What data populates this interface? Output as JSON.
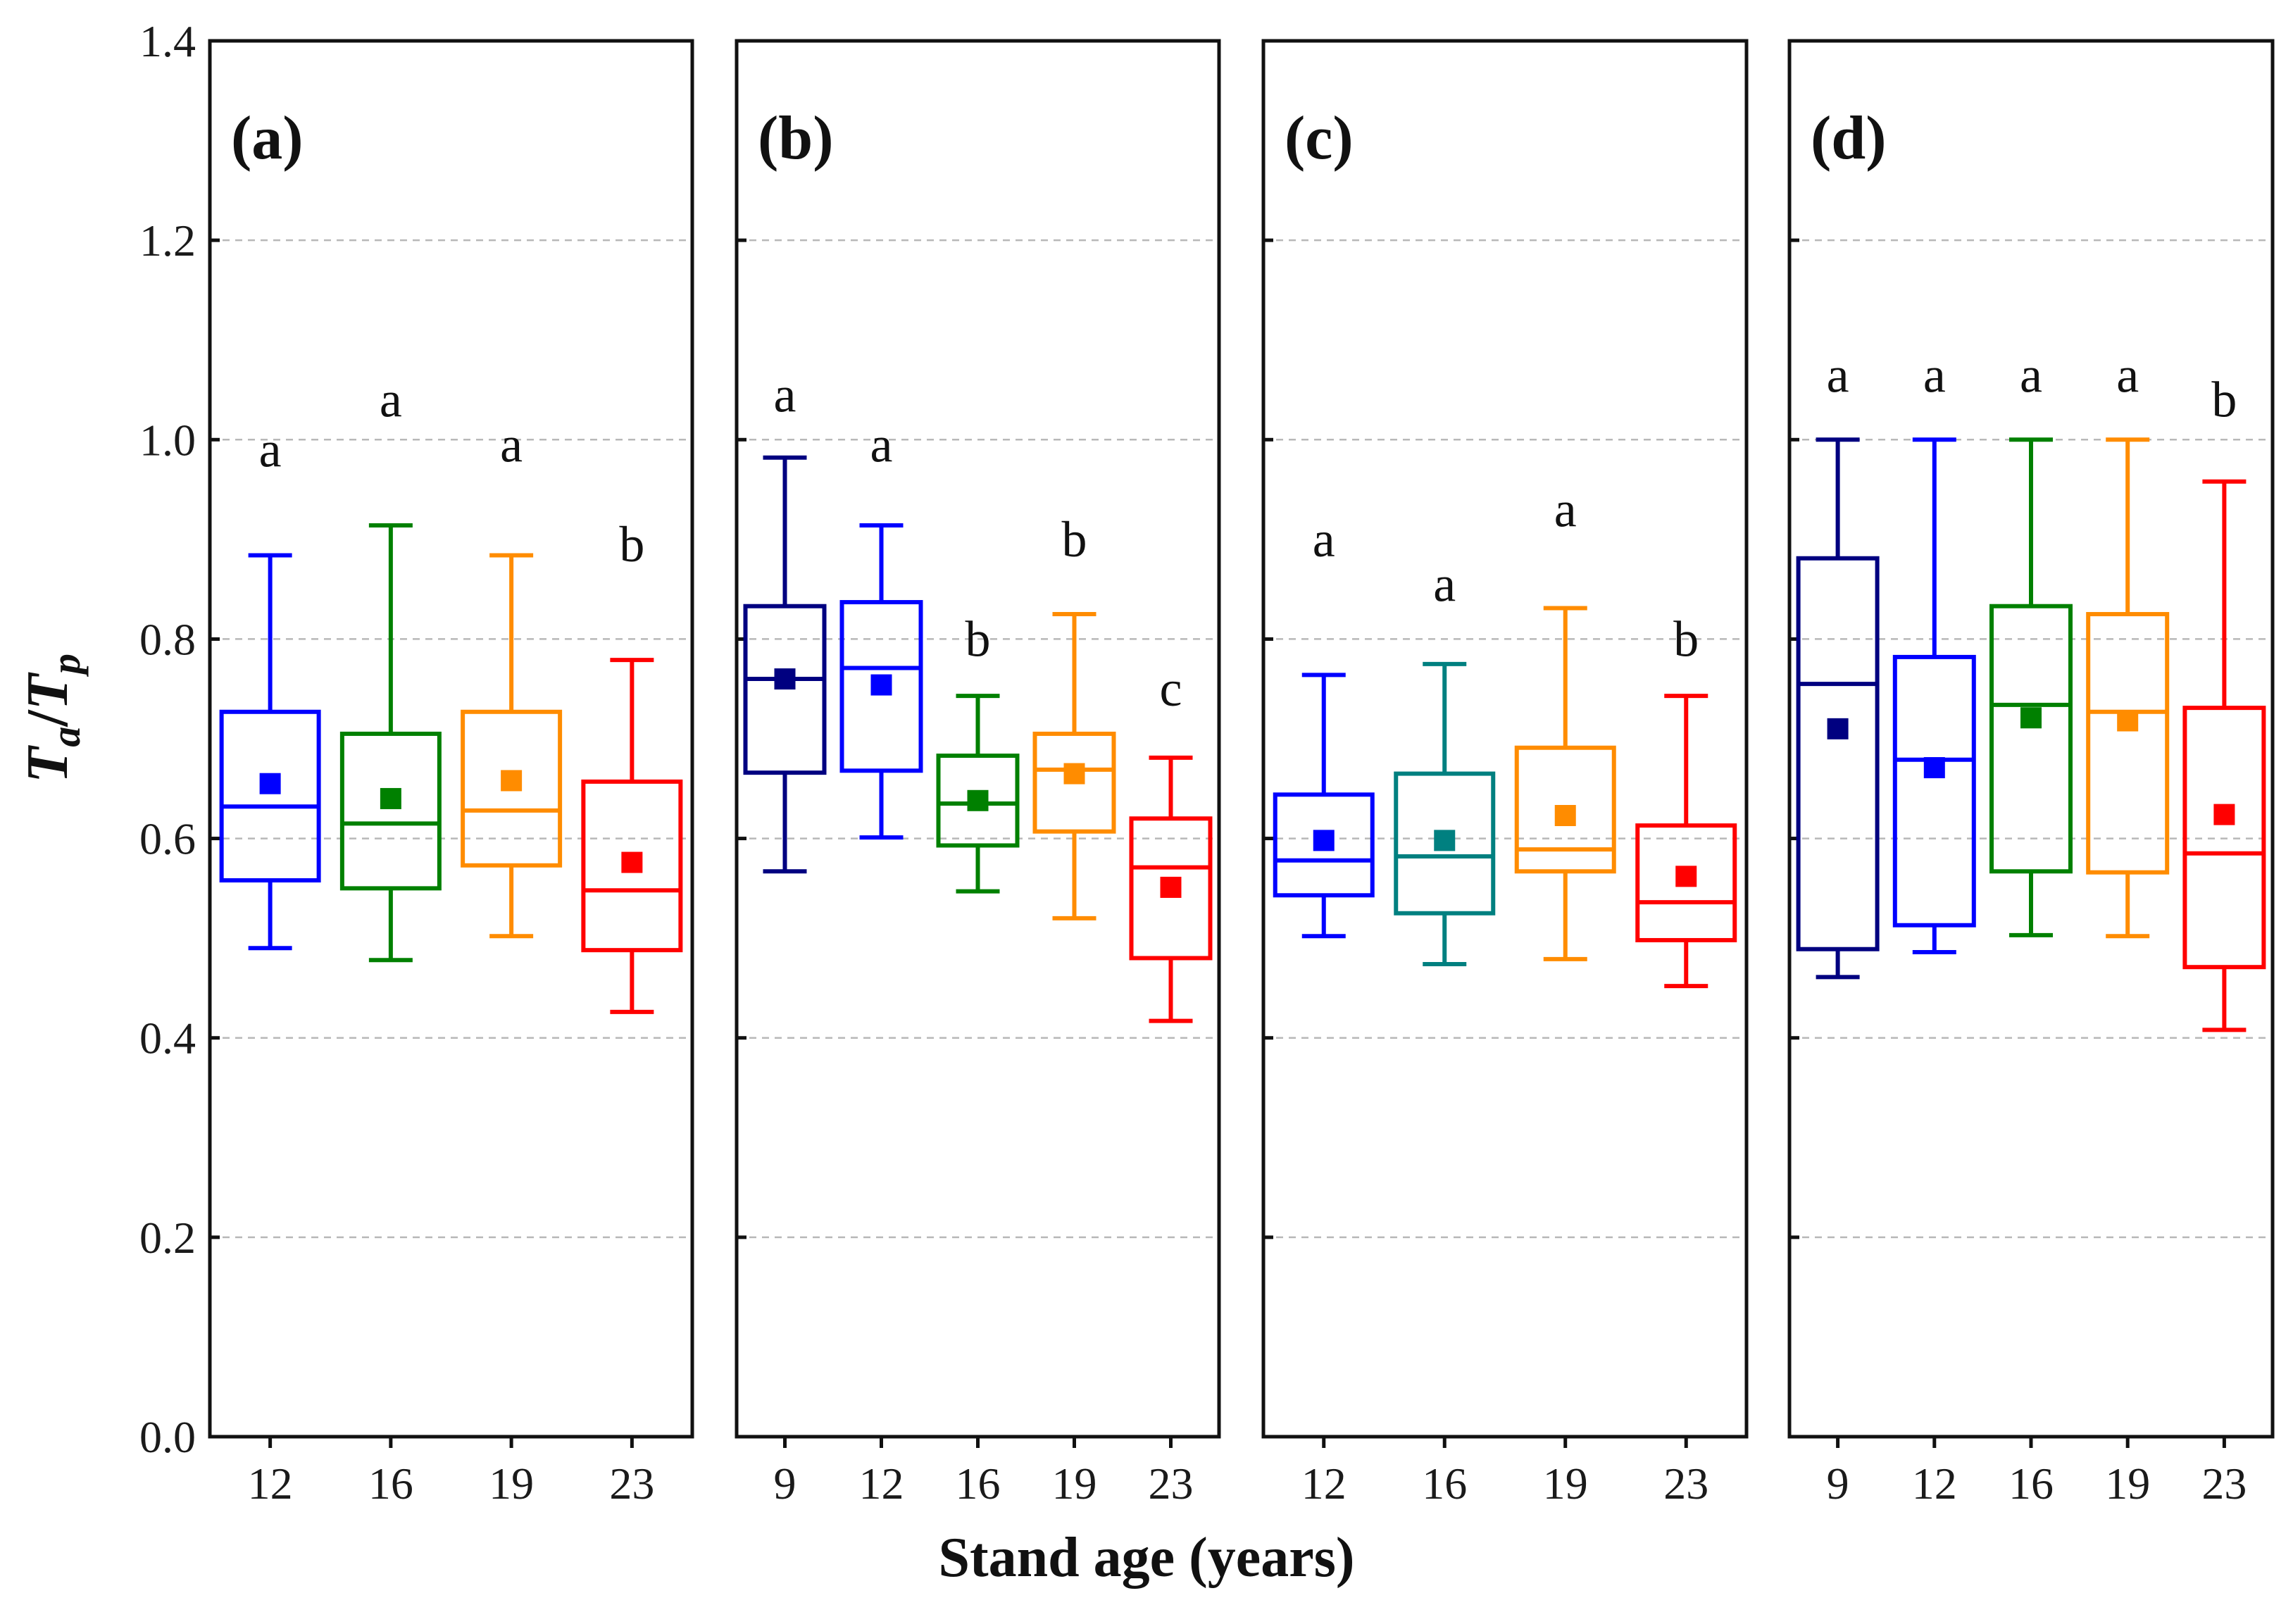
{
  "chart_data": {
    "type": "box",
    "ylabel": {
      "main1": "T",
      "sub1": "a",
      "slash": "/",
      "main2": "T",
      "sub2": "p"
    },
    "xlabel": "Stand age (years)",
    "ylim": [
      0.0,
      1.4
    ],
    "yticks": [
      "0.0",
      "0.2",
      "0.4",
      "0.6",
      "0.8",
      "1.0",
      "1.2",
      "1.4"
    ],
    "grid": true,
    "panels": [
      {
        "label": "(a)",
        "boxes": [
          {
            "category": "12",
            "color": "#0000ff",
            "whisker_low": 0.49,
            "q1": 0.558,
            "median": 0.632,
            "q3": 0.727,
            "whisker_high": 0.884,
            "mean": 0.655,
            "sig": "a",
            "sig_y": 0.99
          },
          {
            "category": "16",
            "color": "#008000",
            "whisker_low": 0.478,
            "q1": 0.55,
            "median": 0.615,
            "q3": 0.705,
            "whisker_high": 0.914,
            "mean": 0.64,
            "sig": "a",
            "sig_y": 1.04
          },
          {
            "category": "19",
            "color": "#ff8c00",
            "whisker_low": 0.502,
            "q1": 0.573,
            "median": 0.628,
            "q3": 0.727,
            "whisker_high": 0.884,
            "mean": 0.658,
            "sig": "a",
            "sig_y": 0.995
          },
          {
            "category": "23",
            "color": "#ff0000",
            "whisker_low": 0.426,
            "q1": 0.488,
            "median": 0.548,
            "q3": 0.657,
            "whisker_high": 0.779,
            "mean": 0.576,
            "sig": "b",
            "sig_y": 0.895
          }
        ]
      },
      {
        "label": "(b)",
        "boxes": [
          {
            "category": "9",
            "color": "#000080",
            "whisker_low": 0.567,
            "q1": 0.666,
            "median": 0.76,
            "q3": 0.833,
            "whisker_high": 0.982,
            "mean": 0.76,
            "sig": "a",
            "sig_y": 1.045
          },
          {
            "category": "12",
            "color": "#0000ff",
            "whisker_low": 0.601,
            "q1": 0.668,
            "median": 0.771,
            "q3": 0.837,
            "whisker_high": 0.914,
            "mean": 0.754,
            "sig": "a",
            "sig_y": 0.995
          },
          {
            "category": "16",
            "color": "#008000",
            "whisker_low": 0.547,
            "q1": 0.593,
            "median": 0.635,
            "q3": 0.683,
            "whisker_high": 0.743,
            "mean": 0.638,
            "sig": "b",
            "sig_y": 0.8
          },
          {
            "category": "19",
            "color": "#ff8c00",
            "whisker_low": 0.52,
            "q1": 0.607,
            "median": 0.669,
            "q3": 0.705,
            "whisker_high": 0.825,
            "mean": 0.665,
            "sig": "b",
            "sig_y": 0.9
          },
          {
            "category": "23",
            "color": "#ff0000",
            "whisker_low": 0.417,
            "q1": 0.48,
            "median": 0.571,
            "q3": 0.62,
            "whisker_high": 0.681,
            "mean": 0.551,
            "sig": "c",
            "sig_y": 0.75
          }
        ]
      },
      {
        "label": "(c)",
        "boxes": [
          {
            "category": "12",
            "color": "#0000ff",
            "whisker_low": 0.502,
            "q1": 0.543,
            "median": 0.578,
            "q3": 0.644,
            "whisker_high": 0.764,
            "mean": 0.598,
            "sig": "a",
            "sig_y": 0.9
          },
          {
            "category": "16",
            "color": "#008080",
            "whisker_low": 0.474,
            "q1": 0.525,
            "median": 0.582,
            "q3": 0.665,
            "whisker_high": 0.775,
            "mean": 0.598,
            "sig": "a",
            "sig_y": 0.855
          },
          {
            "category": "19",
            "color": "#ff8c00",
            "whisker_low": 0.479,
            "q1": 0.567,
            "median": 0.589,
            "q3": 0.691,
            "whisker_high": 0.831,
            "mean": 0.623,
            "sig": "a",
            "sig_y": 0.93
          },
          {
            "category": "23",
            "color": "#ff0000",
            "whisker_low": 0.452,
            "q1": 0.498,
            "median": 0.536,
            "q3": 0.613,
            "whisker_high": 0.743,
            "mean": 0.562,
            "sig": "b",
            "sig_y": 0.8
          }
        ]
      },
      {
        "label": "(d)",
        "boxes": [
          {
            "category": "9",
            "color": "#000080",
            "whisker_low": 0.461,
            "q1": 0.489,
            "median": 0.755,
            "q3": 0.881,
            "whisker_high": 1.0,
            "mean": 0.71,
            "sig": "a",
            "sig_y": 1.065
          },
          {
            "category": "12",
            "color": "#0000ff",
            "whisker_low": 0.486,
            "q1": 0.513,
            "median": 0.679,
            "q3": 0.782,
            "whisker_high": 1.0,
            "mean": 0.671,
            "sig": "a",
            "sig_y": 1.065
          },
          {
            "category": "16",
            "color": "#008000",
            "whisker_low": 0.503,
            "q1": 0.567,
            "median": 0.734,
            "q3": 0.833,
            "whisker_high": 1.0,
            "mean": 0.721,
            "sig": "a",
            "sig_y": 1.065
          },
          {
            "category": "19",
            "color": "#ff8c00",
            "whisker_low": 0.502,
            "q1": 0.566,
            "median": 0.727,
            "q3": 0.825,
            "whisker_high": 1.0,
            "mean": 0.718,
            "sig": "a",
            "sig_y": 1.065
          },
          {
            "category": "23",
            "color": "#ff0000",
            "whisker_low": 0.408,
            "q1": 0.471,
            "median": 0.585,
            "q3": 0.731,
            "whisker_high": 0.958,
            "mean": 0.624,
            "sig": "b",
            "sig_y": 1.04
          }
        ]
      }
    ]
  }
}
